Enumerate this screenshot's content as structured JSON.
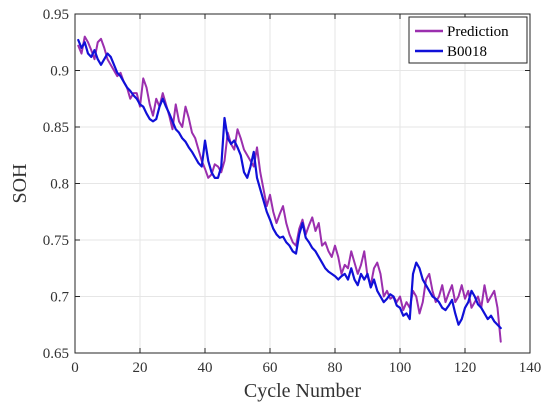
{
  "chart_data": {
    "type": "line",
    "title": "",
    "xlabel": "Cycle Number",
    "ylabel": "SOH",
    "xlim": [
      0,
      140
    ],
    "ylim": [
      0.65,
      0.95
    ],
    "x_ticks": [
      0,
      20,
      40,
      60,
      80,
      100,
      120,
      140
    ],
    "y_ticks": [
      0.65,
      0.7,
      0.75,
      0.8,
      0.85,
      0.9,
      0.95
    ],
    "x_tick_labels": [
      "0",
      "20",
      "40",
      "60",
      "80",
      "100",
      "120",
      "140"
    ],
    "y_tick_labels": [
      "0.65",
      "0.7",
      "0.75",
      "0.8",
      "0.85",
      "0.9",
      "0.95"
    ],
    "grid": true,
    "legend_position": "top-right",
    "series": [
      {
        "name": "Prediction",
        "color": "#9b2fae",
        "points": [
          [
            1,
            0.922
          ],
          [
            2,
            0.915
          ],
          [
            3,
            0.93
          ],
          [
            4,
            0.925
          ],
          [
            5,
            0.918
          ],
          [
            6,
            0.91
          ],
          [
            7,
            0.925
          ],
          [
            8,
            0.928
          ],
          [
            9,
            0.92
          ],
          [
            10,
            0.91
          ],
          [
            11,
            0.905
          ],
          [
            12,
            0.9
          ],
          [
            13,
            0.895
          ],
          [
            14,
            0.898
          ],
          [
            15,
            0.89
          ],
          [
            16,
            0.885
          ],
          [
            17,
            0.875
          ],
          [
            18,
            0.88
          ],
          [
            19,
            0.88
          ],
          [
            20,
            0.868
          ],
          [
            21,
            0.893
          ],
          [
            22,
            0.885
          ],
          [
            23,
            0.87
          ],
          [
            24,
            0.86
          ],
          [
            25,
            0.875
          ],
          [
            26,
            0.868
          ],
          [
            27,
            0.88
          ],
          [
            28,
            0.87
          ],
          [
            29,
            0.86
          ],
          [
            30,
            0.848
          ],
          [
            31,
            0.87
          ],
          [
            32,
            0.855
          ],
          [
            33,
            0.85
          ],
          [
            34,
            0.868
          ],
          [
            35,
            0.858
          ],
          [
            36,
            0.845
          ],
          [
            37,
            0.84
          ],
          [
            38,
            0.83
          ],
          [
            39,
            0.82
          ],
          [
            40,
            0.813
          ],
          [
            41,
            0.805
          ],
          [
            42,
            0.808
          ],
          [
            43,
            0.817
          ],
          [
            44,
            0.815
          ],
          [
            45,
            0.81
          ],
          [
            46,
            0.82
          ],
          [
            47,
            0.845
          ],
          [
            48,
            0.835
          ],
          [
            49,
            0.83
          ],
          [
            50,
            0.848
          ],
          [
            51,
            0.84
          ],
          [
            52,
            0.83
          ],
          [
            53,
            0.825
          ],
          [
            54,
            0.82
          ],
          [
            55,
            0.815
          ],
          [
            56,
            0.832
          ],
          [
            57,
            0.81
          ],
          [
            58,
            0.795
          ],
          [
            59,
            0.78
          ],
          [
            60,
            0.79
          ],
          [
            61,
            0.775
          ],
          [
            62,
            0.765
          ],
          [
            63,
            0.773
          ],
          [
            64,
            0.78
          ],
          [
            65,
            0.765
          ],
          [
            66,
            0.755
          ],
          [
            67,
            0.748
          ],
          [
            68,
            0.745
          ],
          [
            69,
            0.76
          ],
          [
            70,
            0.768
          ],
          [
            71,
            0.755
          ],
          [
            72,
            0.763
          ],
          [
            73,
            0.77
          ],
          [
            74,
            0.758
          ],
          [
            75,
            0.765
          ],
          [
            76,
            0.745
          ],
          [
            77,
            0.748
          ],
          [
            78,
            0.74
          ],
          [
            79,
            0.735
          ],
          [
            80,
            0.745
          ],
          [
            81,
            0.735
          ],
          [
            82,
            0.72
          ],
          [
            83,
            0.728
          ],
          [
            84,
            0.725
          ],
          [
            85,
            0.74
          ],
          [
            86,
            0.73
          ],
          [
            87,
            0.72
          ],
          [
            88,
            0.728
          ],
          [
            89,
            0.74
          ],
          [
            90,
            0.718
          ],
          [
            91,
            0.71
          ],
          [
            92,
            0.725
          ],
          [
            93,
            0.73
          ],
          [
            94,
            0.72
          ],
          [
            95,
            0.7
          ],
          [
            96,
            0.705
          ],
          [
            97,
            0.698
          ],
          [
            98,
            0.7
          ],
          [
            99,
            0.695
          ],
          [
            100,
            0.7
          ],
          [
            101,
            0.688
          ],
          [
            102,
            0.695
          ],
          [
            103,
            0.69
          ],
          [
            104,
            0.705
          ],
          [
            105,
            0.7
          ],
          [
            106,
            0.685
          ],
          [
            107,
            0.695
          ],
          [
            108,
            0.715
          ],
          [
            109,
            0.72
          ],
          [
            110,
            0.705
          ],
          [
            111,
            0.695
          ],
          [
            112,
            0.7
          ],
          [
            113,
            0.71
          ],
          [
            114,
            0.695
          ],
          [
            115,
            0.703
          ],
          [
            116,
            0.71
          ],
          [
            117,
            0.695
          ],
          [
            118,
            0.7
          ],
          [
            119,
            0.71
          ],
          [
            120,
            0.698
          ],
          [
            121,
            0.705
          ],
          [
            122,
            0.69
          ],
          [
            123,
            0.695
          ],
          [
            124,
            0.7
          ],
          [
            125,
            0.69
          ],
          [
            126,
            0.71
          ],
          [
            127,
            0.695
          ],
          [
            128,
            0.7
          ],
          [
            129,
            0.705
          ],
          [
            130,
            0.69
          ],
          [
            131,
            0.66
          ]
        ]
      },
      {
        "name": "B0018",
        "color": "#1010d8",
        "points": [
          [
            1,
            0.927
          ],
          [
            2,
            0.92
          ],
          [
            3,
            0.925
          ],
          [
            4,
            0.915
          ],
          [
            5,
            0.912
          ],
          [
            6,
            0.918
          ],
          [
            7,
            0.91
          ],
          [
            8,
            0.905
          ],
          [
            9,
            0.91
          ],
          [
            10,
            0.915
          ],
          [
            11,
            0.912
          ],
          [
            12,
            0.905
          ],
          [
            13,
            0.898
          ],
          [
            14,
            0.895
          ],
          [
            15,
            0.89
          ],
          [
            16,
            0.885
          ],
          [
            17,
            0.882
          ],
          [
            18,
            0.878
          ],
          [
            19,
            0.875
          ],
          [
            20,
            0.87
          ],
          [
            21,
            0.868
          ],
          [
            22,
            0.862
          ],
          [
            23,
            0.857
          ],
          [
            24,
            0.855
          ],
          [
            25,
            0.857
          ],
          [
            26,
            0.868
          ],
          [
            27,
            0.875
          ],
          [
            28,
            0.868
          ],
          [
            29,
            0.862
          ],
          [
            30,
            0.855
          ],
          [
            31,
            0.848
          ],
          [
            32,
            0.845
          ],
          [
            33,
            0.84
          ],
          [
            34,
            0.837
          ],
          [
            35,
            0.832
          ],
          [
            36,
            0.828
          ],
          [
            37,
            0.823
          ],
          [
            38,
            0.818
          ],
          [
            39,
            0.815
          ],
          [
            40,
            0.838
          ],
          [
            41,
            0.82
          ],
          [
            42,
            0.81
          ],
          [
            43,
            0.805
          ],
          [
            44,
            0.805
          ],
          [
            45,
            0.815
          ],
          [
            46,
            0.858
          ],
          [
            47,
            0.84
          ],
          [
            48,
            0.835
          ],
          [
            49,
            0.838
          ],
          [
            50,
            0.832
          ],
          [
            51,
            0.825
          ],
          [
            52,
            0.81
          ],
          [
            53,
            0.805
          ],
          [
            54,
            0.815
          ],
          [
            55,
            0.828
          ],
          [
            56,
            0.805
          ],
          [
            57,
            0.795
          ],
          [
            58,
            0.785
          ],
          [
            59,
            0.775
          ],
          [
            60,
            0.768
          ],
          [
            61,
            0.76
          ],
          [
            62,
            0.755
          ],
          [
            63,
            0.752
          ],
          [
            64,
            0.753
          ],
          [
            65,
            0.748
          ],
          [
            66,
            0.745
          ],
          [
            67,
            0.74
          ],
          [
            68,
            0.738
          ],
          [
            69,
            0.755
          ],
          [
            70,
            0.765
          ],
          [
            71,
            0.752
          ],
          [
            72,
            0.748
          ],
          [
            73,
            0.743
          ],
          [
            74,
            0.74
          ],
          [
            75,
            0.735
          ],
          [
            76,
            0.73
          ],
          [
            77,
            0.725
          ],
          [
            78,
            0.722
          ],
          [
            79,
            0.72
          ],
          [
            80,
            0.718
          ],
          [
            81,
            0.715
          ],
          [
            82,
            0.718
          ],
          [
            83,
            0.72
          ],
          [
            84,
            0.715
          ],
          [
            85,
            0.725
          ],
          [
            86,
            0.715
          ],
          [
            87,
            0.71
          ],
          [
            88,
            0.72
          ],
          [
            89,
            0.715
          ],
          [
            90,
            0.72
          ],
          [
            91,
            0.708
          ],
          [
            92,
            0.715
          ],
          [
            93,
            0.705
          ],
          [
            94,
            0.7
          ],
          [
            95,
            0.695
          ],
          [
            96,
            0.698
          ],
          [
            97,
            0.702
          ],
          [
            98,
            0.7
          ],
          [
            99,
            0.692
          ],
          [
            100,
            0.69
          ],
          [
            101,
            0.683
          ],
          [
            102,
            0.685
          ],
          [
            103,
            0.68
          ],
          [
            104,
            0.72
          ],
          [
            105,
            0.73
          ],
          [
            106,
            0.725
          ],
          [
            107,
            0.715
          ],
          [
            108,
            0.71
          ],
          [
            109,
            0.705
          ],
          [
            110,
            0.7
          ],
          [
            111,
            0.698
          ],
          [
            112,
            0.695
          ],
          [
            113,
            0.69
          ],
          [
            114,
            0.688
          ],
          [
            115,
            0.692
          ],
          [
            116,
            0.697
          ],
          [
            117,
            0.685
          ],
          [
            118,
            0.675
          ],
          [
            119,
            0.68
          ],
          [
            120,
            0.69
          ],
          [
            121,
            0.695
          ],
          [
            122,
            0.705
          ],
          [
            123,
            0.7
          ],
          [
            124,
            0.693
          ],
          [
            125,
            0.69
          ],
          [
            126,
            0.685
          ],
          [
            127,
            0.68
          ],
          [
            128,
            0.683
          ],
          [
            129,
            0.678
          ],
          [
            130,
            0.675
          ],
          [
            131,
            0.672
          ]
        ]
      }
    ]
  }
}
